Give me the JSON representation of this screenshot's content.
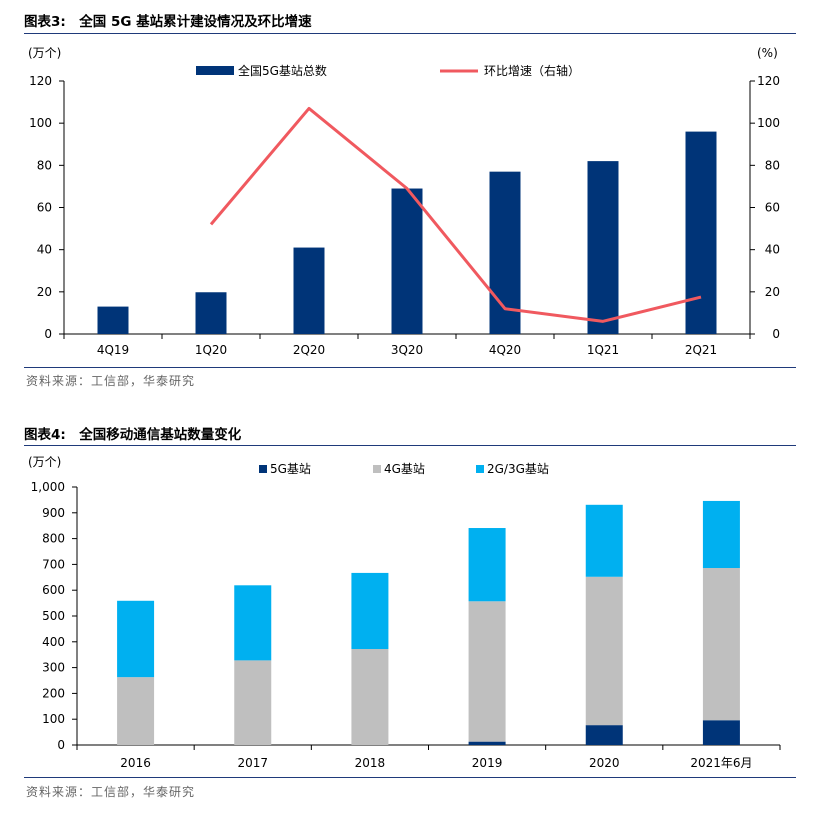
{
  "figure3": {
    "title": "图表3:　全国 5G 基站累计建设情况及环比增速",
    "source": "资料来源：工信部，华泰研究",
    "chart_data": {
      "type": "bar",
      "categories": [
        "4Q19",
        "1Q20",
        "2Q20",
        "3Q20",
        "4Q20",
        "1Q21",
        "2Q21"
      ],
      "left_unit": "(万个)",
      "right_unit": "(%)",
      "left_ylim": [
        0,
        120
      ],
      "right_ylim": [
        0,
        120
      ],
      "left_ticks": [
        "0",
        "20",
        "40",
        "60",
        "80",
        "100",
        "120"
      ],
      "right_ticks": [
        "0",
        "20",
        "40",
        "60",
        "80",
        "100",
        "120"
      ],
      "legend_position": "top",
      "series": [
        {
          "name": "全国5G基站总数",
          "kind": "bar",
          "axis": "left",
          "color": "#003478",
          "values": [
            13,
            19.8,
            41,
            69,
            77,
            82,
            96
          ]
        },
        {
          "name": "环比增速（右轴）",
          "kind": "line",
          "axis": "right",
          "color": "#f0595f",
          "values": [
            null,
            52,
            107,
            69,
            12,
            6,
            17.5
          ]
        }
      ]
    }
  },
  "figure4": {
    "title": "图表4:　全国移动通信基站数量变化",
    "source": "资料来源：工信部，华泰研究",
    "chart_data": {
      "type": "bar",
      "stacked": true,
      "categories": [
        "2016",
        "2017",
        "2018",
        "2019",
        "2020",
        "2021年6月"
      ],
      "unit": "(万个)",
      "ylim": [
        0,
        1000
      ],
      "ticks": [
        "0",
        "100",
        "200",
        "300",
        "400",
        "500",
        "600",
        "700",
        "800",
        "900",
        "1,000"
      ],
      "legend_position": "top",
      "series": [
        {
          "name": "5G基站",
          "color": "#003478",
          "values": [
            0,
            0,
            0,
            13,
            77,
            96
          ]
        },
        {
          "name": "4G基站",
          "color": "#bfbfbf",
          "values": [
            263,
            328,
            372,
            544,
            575,
            590
          ]
        },
        {
          "name": "2G/3G基站",
          "color": "#00b0f0",
          "values": [
            296,
            291,
            295,
            284,
            279,
            260
          ]
        }
      ]
    }
  }
}
